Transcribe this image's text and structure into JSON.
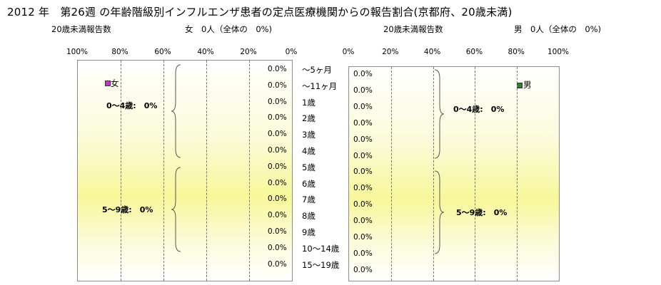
{
  "title": "2012 年　第26週 の年齢階級別インフルエンザ患者の定点医療機関からの報告割合(京都府、20歳未満)",
  "left": {
    "count_label": "20歳未満報告数",
    "sex_summary": "女　0人（全体の　0%)",
    "legend": "女"
  },
  "right": {
    "count_label": "20歳未満報告数",
    "sex_summary": "男　0人（全体の　0%)",
    "legend": "男"
  },
  "groups": {
    "g1": "0～4歳:　0%",
    "g2": "5～9歳:　0%"
  },
  "colors": {
    "female": "#cc33cc",
    "male": "#2e7d32"
  },
  "chart_data": [
    {
      "type": "bar",
      "orientation": "horizontal",
      "direction": "right-to-left",
      "title": "",
      "categories": [
        "～5ヶ月",
        "～11ヶ月",
        "1歳",
        "2歳",
        "3歳",
        "4歳",
        "5歳",
        "6歳",
        "7歳",
        "8歳",
        "9歳",
        "10～14歳",
        "15～19歳"
      ],
      "series": [
        {
          "name": "女",
          "values": [
            0,
            0,
            0,
            0,
            0,
            0,
            0,
            0,
            0,
            0,
            0,
            0,
            0
          ]
        }
      ],
      "value_labels": [
        "0.0%",
        "0.0%",
        "0.0%",
        "0.0%",
        "0.0%",
        "0.0%",
        "0.0%",
        "0.0%",
        "0.0%",
        "0.0%",
        "0.0%",
        "0.0%",
        "0.0%"
      ],
      "xlim": [
        0,
        100
      ],
      "x_ticks": [
        "100%",
        "80%",
        "60%",
        "40%",
        "20%",
        "0%"
      ],
      "grid": true,
      "legend_position": "top-left"
    },
    {
      "type": "bar",
      "orientation": "horizontal",
      "direction": "left-to-right",
      "title": "",
      "categories": [
        "～5ヶ月",
        "～11ヶ月",
        "1歳",
        "2歳",
        "3歳",
        "4歳",
        "5歳",
        "6歳",
        "7歳",
        "8歳",
        "9歳",
        "10～14歳",
        "15～19歳"
      ],
      "series": [
        {
          "name": "男",
          "values": [
            0,
            0,
            0,
            0,
            0,
            0,
            0,
            0,
            0,
            0,
            0,
            0,
            0
          ]
        }
      ],
      "value_labels": [
        "0.0%",
        "0.0%",
        "0.0%",
        "0.0%",
        "0.0%",
        "0.0%",
        "0.0%",
        "0.0%",
        "0.0%",
        "0.0%",
        "0.0%",
        "0.0%",
        "0.0%"
      ],
      "xlim": [
        0,
        100
      ],
      "x_ticks": [
        "0%",
        "20%",
        "40%",
        "60%",
        "80%",
        "100%"
      ],
      "grid": true,
      "legend_position": "top-right"
    }
  ]
}
